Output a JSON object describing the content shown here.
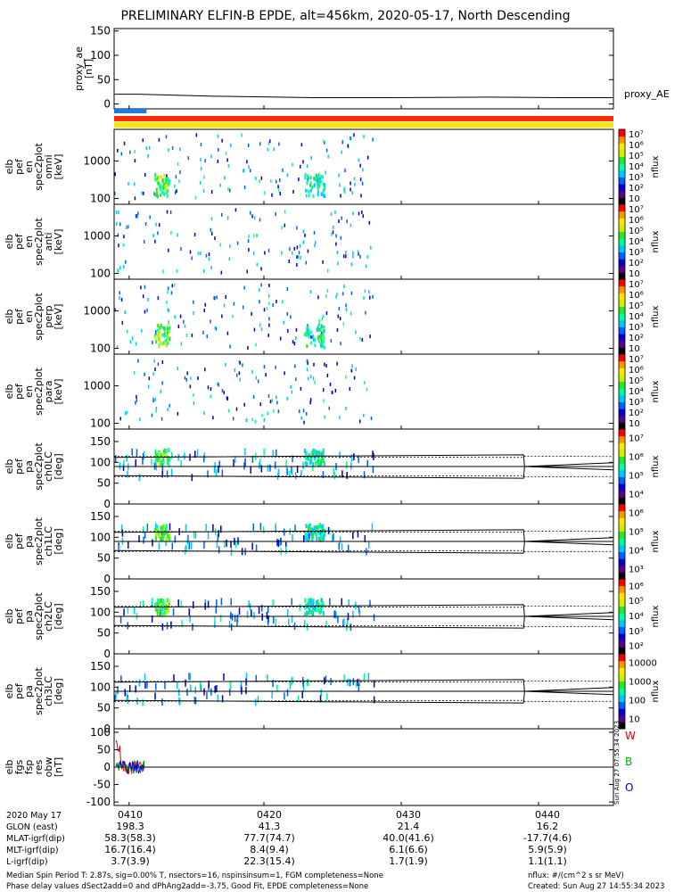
{
  "title": "PRELIMINARY ELFIN-B EPDE, alt=456km, 2020-05-17, North Descending",
  "chart_data": {
    "type": "heatmap",
    "time_ticks": [
      "0410",
      "0420",
      "0430",
      "0440"
    ],
    "panels": [
      {
        "id": "proxy_ae",
        "type": "line",
        "ylabel": [
          "proxy_ae",
          "[nT]"
        ],
        "ylim": [
          -10,
          155
        ],
        "yticks": [
          0,
          50,
          100,
          150
        ],
        "legend": "proxy_AE",
        "x": [
          0,
          0.05,
          0.2,
          0.4,
          0.55,
          0.75,
          0.9,
          1.0
        ],
        "y": [
          20,
          20,
          16,
          13,
          13,
          14,
          13,
          13
        ]
      },
      {
        "id": "flags",
        "type": "bar",
        "bars": [
          {
            "color": "#ff2a00",
            "x0": 0,
            "x1": 1
          },
          {
            "color": "#ffe600",
            "x0": 0,
            "x1": 1
          },
          {
            "color": "#1a7af0",
            "x0": 0,
            "x1": 0.065
          }
        ]
      },
      {
        "id": "spec_omni",
        "type": "spectrogram",
        "ylabel": [
          "elb",
          "pef",
          "en",
          "spec2plot",
          "omni",
          "[keV]"
        ],
        "yscale": "log",
        "yticks": [
          100,
          1000
        ],
        "cbar": {
          "label": "nflux",
          "ticks": [
            "10",
            "10²",
            "10³",
            "10⁴",
            "10⁵",
            "10⁶",
            "10⁷"
          ]
        }
      },
      {
        "id": "spec_anti",
        "type": "spectrogram",
        "ylabel": [
          "elb",
          "pef",
          "en",
          "spec2plot",
          "anti",
          "[keV]"
        ],
        "yscale": "log",
        "yticks": [
          100,
          1000
        ],
        "cbar": {
          "label": "nflux",
          "ticks": [
            "10",
            "10²",
            "10³",
            "10⁴",
            "10⁵",
            "10⁶",
            "10⁷"
          ]
        }
      },
      {
        "id": "spec_perp",
        "type": "spectrogram",
        "ylabel": [
          "elb",
          "pef",
          "en",
          "spec2plot",
          "perp",
          "[keV]"
        ],
        "yscale": "log",
        "yticks": [
          100,
          1000
        ],
        "cbar": {
          "label": "nflux",
          "ticks": [
            "10",
            "10²",
            "10³",
            "10⁴",
            "10⁵",
            "10⁶",
            "10⁷"
          ]
        }
      },
      {
        "id": "spec_para",
        "type": "spectrogram",
        "ylabel": [
          "elb",
          "pef",
          "en",
          "spec2plot",
          "para",
          "[keV]"
        ],
        "yscale": "log",
        "yticks": [
          100,
          1000
        ],
        "cbar": {
          "label": "nflux",
          "ticks": [
            "10",
            "10²",
            "10³",
            "10⁴",
            "10⁵",
            "10⁶",
            "10⁷"
          ]
        }
      },
      {
        "id": "pa_ch0",
        "type": "spectrogram",
        "ylabel": [
          "elb",
          "pef",
          "pa",
          "spec2plot",
          "ch0LC",
          "[deg]"
        ],
        "ylim": [
          0,
          180
        ],
        "yticks": [
          0,
          50,
          100,
          150
        ],
        "cbar": {
          "label": "nflux",
          "ticks": [
            "10⁴",
            "10⁵",
            "10⁶",
            "10⁷"
          ]
        }
      },
      {
        "id": "pa_ch1",
        "type": "spectrogram",
        "ylabel": [
          "elb",
          "pef",
          "pa",
          "spec2plot",
          "ch1LC",
          "[deg]"
        ],
        "ylim": [
          0,
          180
        ],
        "yticks": [
          0,
          50,
          100,
          150
        ],
        "cbar": {
          "label": "nflux",
          "ticks": [
            "10³",
            "10⁴",
            "10⁵",
            "10⁶"
          ]
        }
      },
      {
        "id": "pa_ch2",
        "type": "spectrogram",
        "ylabel": [
          "elb",
          "pef",
          "pa",
          "spec2plot",
          "ch2LC",
          "[deg]"
        ],
        "ylim": [
          0,
          180
        ],
        "yticks": [
          0,
          50,
          100,
          150
        ],
        "cbar": {
          "label": "nflux",
          "ticks": [
            "10²",
            "10³",
            "10⁴",
            "10⁵",
            "10⁶"
          ]
        }
      },
      {
        "id": "pa_ch3",
        "type": "spectrogram",
        "ylabel": [
          "elb",
          "pef",
          "pa",
          "spec2plot",
          "ch3LC",
          "[deg]"
        ],
        "ylim": [
          0,
          180
        ],
        "yticks": [
          0,
          50,
          100,
          150
        ],
        "cbar": {
          "label": "nflux",
          "ticks": [
            "10",
            "100",
            "1000",
            "10000"
          ]
        }
      },
      {
        "id": "fgs",
        "type": "line",
        "ylabel": [
          "elb",
          "fgs",
          "fsp",
          "res",
          "obw",
          "[nT]"
        ],
        "ylim": [
          -110,
          110
        ],
        "yticks": [
          -100,
          -50,
          0,
          50,
          100
        ],
        "legend": [
          "W",
          "B",
          "O"
        ],
        "legend_colors": [
          "#e00000",
          "#00b000",
          "#0000e0"
        ]
      }
    ]
  },
  "ephemeris": [
    {
      "label": "2020 May 17",
      "values": [
        "0410",
        "0420",
        "0430",
        "0440"
      ]
    },
    {
      "label": "GLON (east)",
      "values": [
        "198.3",
        "41.3",
        "21.4",
        "16.2"
      ]
    },
    {
      "label": "MLAT-igrf(dip)",
      "values": [
        "58.3(58.3)",
        "77.7(74.7)",
        "40.0(41.6)",
        "-17.7(4.6)"
      ]
    },
    {
      "label": "MLT-igrf(dip)",
      "values": [
        "16.7(16.4)",
        "8.4(9.4)",
        "6.1(6.6)",
        "5.9(5.9)"
      ]
    },
    {
      "label": "L-igrf(dip)",
      "values": [
        "3.7(3.9)",
        "22.3(15.4)",
        "1.7(1.9)",
        "1.1(1.1)"
      ]
    }
  ],
  "footer": {
    "line1": "Median Spin Period T: 2.87s, sig=0.00% T, nsectors=16, nspinsinsum=1, FGM completeness=None",
    "line2": "Phase delay values dSect2add=0 and dPhAng2add=-3.75, Good Fit, EPDE completeness=None",
    "units": "nflux: #/(cm^2 s sr MeV)",
    "created": "Created: Sun Aug 27 14:55:34 2023",
    "side_stamp": "Sun Aug 27 07:55:34 2023"
  },
  "colors": {
    "axis": "#000000",
    "cbar": [
      "#000000",
      "#5a0082",
      "#0000c8",
      "#0060ff",
      "#00c8ff",
      "#00ff9a",
      "#28e628",
      "#c8f000",
      "#ffe600",
      "#ff9600",
      "#ff0000"
    ]
  }
}
